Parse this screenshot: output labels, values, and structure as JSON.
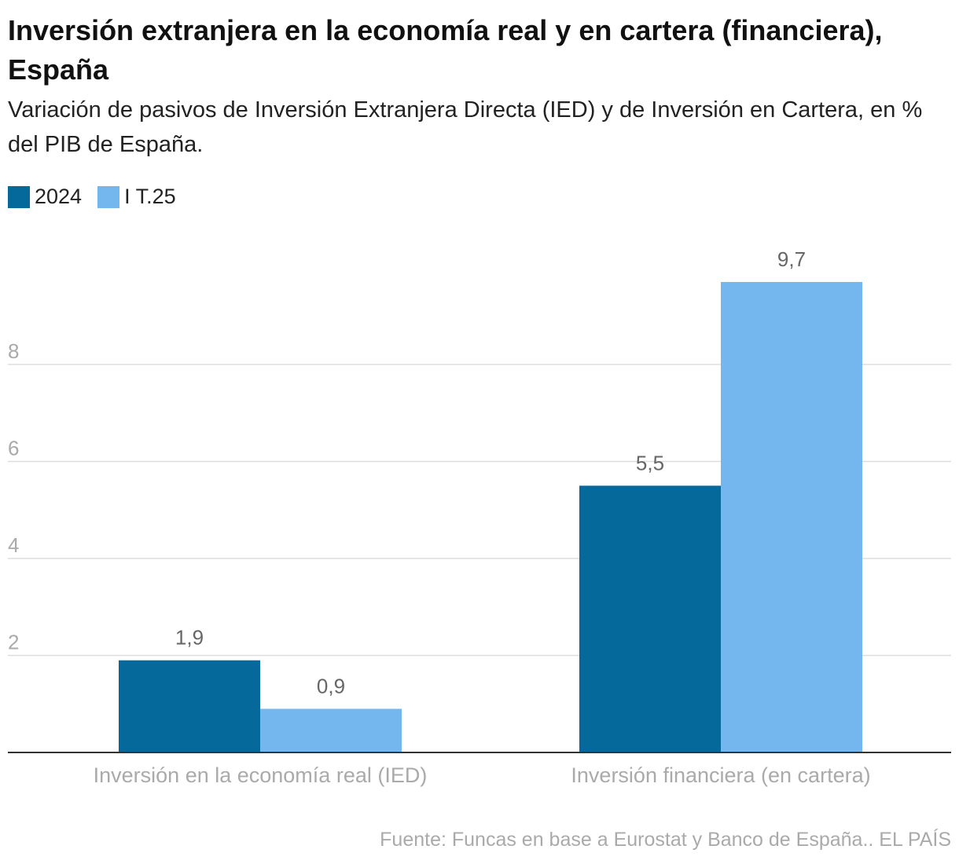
{
  "chart_data": {
    "type": "bar",
    "title": "Inversión extranjera en la economía real y en cartera (financiera), España",
    "subtitle": "Variación de pasivos de Inversión Extranjera Directa (IED) y de Inversión en Cartera, en % del PIB de España.",
    "categories": [
      "Inversión en la economía real (IED)",
      "Inversión financiera (en cartera)"
    ],
    "series": [
      {
        "name": "2024",
        "values": [
          1.9,
          5.5
        ],
        "labels": [
          "1,9",
          "5,5"
        ],
        "color": "#06699b"
      },
      {
        "name": "I T.25",
        "values": [
          0.9,
          9.7
        ],
        "labels": [
          "0,9",
          "9,7"
        ],
        "color": "#74b7ef"
      }
    ],
    "yticks": [
      2,
      4,
      6,
      8
    ],
    "ylim": [
      0,
      10
    ],
    "grid": true,
    "legend": "top-left",
    "xlabel": "",
    "ylabel": "",
    "source": "Fuente: Funcas en base a Eurostat y Banco de España.. EL PAÍS"
  }
}
